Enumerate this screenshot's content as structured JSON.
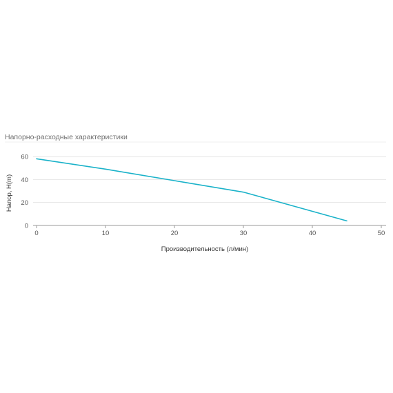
{
  "chart_data": {
    "type": "line",
    "title": "Напорно-расходные характеристики",
    "xlabel": "Производительность (л/мин)",
    "ylabel": "Напор, H(m)",
    "xlim": [
      0,
      50
    ],
    "ylim": [
      0,
      60
    ],
    "x_ticks": [
      "0",
      "10",
      "20",
      "30",
      "40",
      "50"
    ],
    "y_ticks": [
      "0",
      "20",
      "40",
      "60"
    ],
    "grid": true,
    "legend": "none",
    "series": [
      {
        "color": "#1ab2c9",
        "x": [
          0,
          10,
          20,
          30,
          45
        ],
        "y": [
          58,
          49,
          39,
          29,
          4
        ]
      }
    ]
  }
}
